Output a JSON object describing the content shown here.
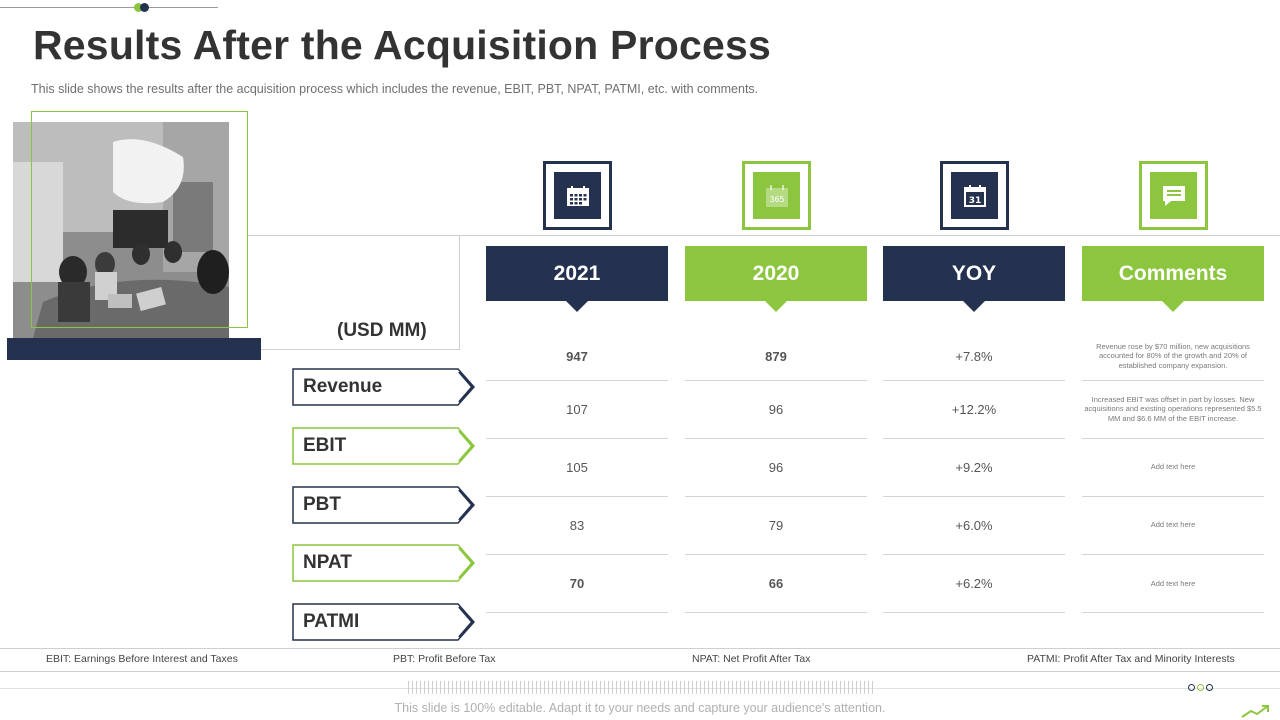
{
  "slide": {
    "title": "Results After the Acquisition Process",
    "subtitle": "This slide shows the results after the acquisition process which includes the revenue,  EBIT, PBT, NPAT, PATMI, etc. with comments.",
    "units_label": "(USD MM)",
    "footer_note": "This slide is 100% editable. Adapt it to your needs and capture your audience's attention."
  },
  "icons": {
    "col_2021": "calendar-icon",
    "col_2020": "calendar-365-icon",
    "col_yoy": "calendar-31-icon",
    "col_comments": "comment-icon",
    "icon_text_2020": "365",
    "icon_text_yoy": "31"
  },
  "columns": [
    "2021",
    "2020",
    "YOY",
    "Comments"
  ],
  "rows": [
    {
      "label": "Revenue",
      "v2021": "947",
      "v2020": "879",
      "yoy": "+7.8%",
      "comment": "Revenue rose by $70 million, new acquisitions accounted  for 80% of the growth and 20% of established  company expansion."
    },
    {
      "label": "EBIT",
      "v2021": "107",
      "v2020": "96",
      "yoy": "+12.2%",
      "comment": "Increased EBIT was offset in part by losses. New acquisitions and existing operations represented $5.5 MM and $6.6 MM of the EBIT increase."
    },
    {
      "label": "PBT",
      "v2021": "105",
      "v2020": "96",
      "yoy": "+9.2%",
      "comment": "Add text here"
    },
    {
      "label": "NPAT",
      "v2021": "83",
      "v2020": "79",
      "yoy": "+6.0%",
      "comment": "Add text here"
    },
    {
      "label": "PATMI",
      "v2021": "70",
      "v2020": "66",
      "yoy": "+6.2%",
      "comment": "Add text here"
    }
  ],
  "glossary": [
    "EBIT:  Earnings Before Interest and Taxes",
    "PBT:  Profit Before Tax",
    "NPAT:  Net Profit After Tax",
    "PATMI:  Profit After Tax and Minority Interests"
  ],
  "colors": {
    "navy": "#24324f",
    "green": "#8cc63f",
    "text": "#333333"
  }
}
